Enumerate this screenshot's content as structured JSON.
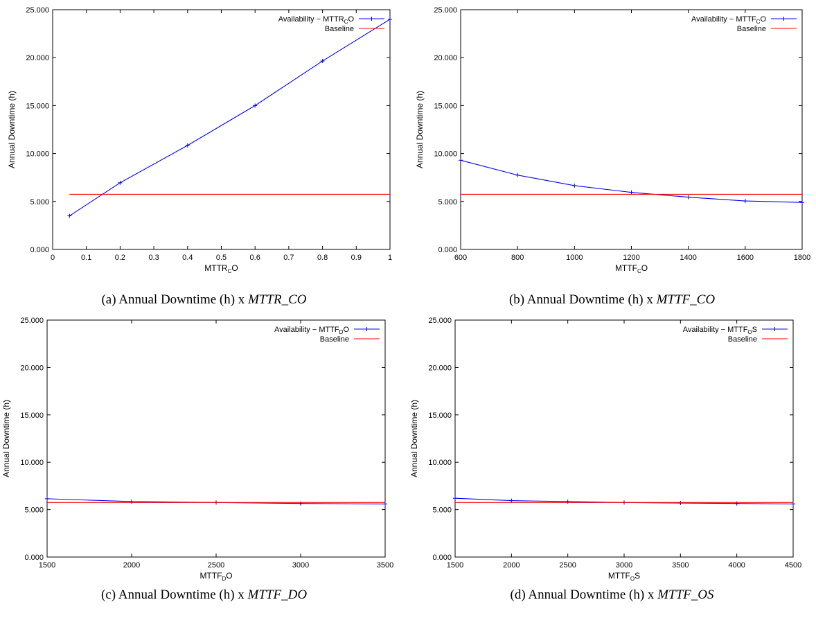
{
  "chart_data": [
    {
      "id": "a",
      "type": "line",
      "caption": {
        "prefix": "(a) Annual Downtime (h) x ",
        "var": "MTTR_CO"
      },
      "xlabel": {
        "base": "MTTR",
        "sub": "C",
        "post": "O"
      },
      "ylabel": "Annual Downtime (h)",
      "xlim": [
        0,
        1
      ],
      "ylim": [
        0,
        25
      ],
      "xticks": [
        0,
        0.1,
        0.2,
        0.3,
        0.4,
        0.5,
        0.6,
        0.7,
        0.8,
        0.9,
        1
      ],
      "xtick_labels": [
        "0",
        "0.1",
        "0.2",
        "0.3",
        "0.4",
        "0.5",
        "0.6",
        "0.7",
        "0.8",
        "0.9",
        "1"
      ],
      "yticks": [
        0,
        5,
        10,
        15,
        20,
        25
      ],
      "ytick_labels": [
        "0.000",
        "5.000",
        "10.000",
        "15.000",
        "20.000",
        "25.000"
      ],
      "legend_position": "top-right",
      "series": [
        {
          "name": {
            "base": "Availability − MTTR",
            "sub": "C",
            "post": "O"
          },
          "color": "#0000ff",
          "markers": true,
          "x": [
            0.05,
            0.2,
            0.4,
            0.6,
            0.8,
            1.0
          ],
          "y": [
            3.5,
            6.95,
            10.85,
            15.0,
            19.65,
            24.0
          ]
        },
        {
          "name": {
            "base": "Baseline",
            "sub": "",
            "post": ""
          },
          "color": "#ff0000",
          "markers": false,
          "x": [
            0.05,
            1.0
          ],
          "y": [
            5.75,
            5.75
          ]
        }
      ]
    },
    {
      "id": "b",
      "type": "line",
      "caption": {
        "prefix": "(b) Annual Downtime (h) x ",
        "var": "MTTF_CO"
      },
      "xlabel": {
        "base": "MTTF",
        "sub": "C",
        "post": "O"
      },
      "ylabel": "Annual Downtime (h)",
      "xlim": [
        600,
        1800
      ],
      "ylim": [
        0,
        25
      ],
      "xticks": [
        600,
        800,
        1000,
        1200,
        1400,
        1600,
        1800
      ],
      "xtick_labels": [
        "600",
        "800",
        "1000",
        "1200",
        "1400",
        "1600",
        "1800"
      ],
      "yticks": [
        0,
        5,
        10,
        15,
        20,
        25
      ],
      "ytick_labels": [
        "0.000",
        "5.000",
        "10.000",
        "15.000",
        "20.000",
        "25.000"
      ],
      "legend_position": "top-right",
      "series": [
        {
          "name": {
            "base": "Availability − MTTF",
            "sub": "C",
            "post": "O"
          },
          "color": "#0000ff",
          "markers": true,
          "x": [
            600,
            800,
            1000,
            1200,
            1400,
            1600,
            1800
          ],
          "y": [
            9.3,
            7.75,
            6.65,
            5.95,
            5.45,
            5.05,
            4.9
          ]
        },
        {
          "name": {
            "base": "Baseline",
            "sub": "",
            "post": ""
          },
          "color": "#ff0000",
          "markers": false,
          "x": [
            600,
            1800
          ],
          "y": [
            5.75,
            5.75
          ]
        }
      ]
    },
    {
      "id": "c",
      "type": "line",
      "caption": {
        "prefix": "(c) Annual Downtime (h) x ",
        "var": "MTTF_DO"
      },
      "xlabel": {
        "base": "MTTF",
        "sub": "D",
        "post": "O"
      },
      "ylabel": "Annual Downtime (h)",
      "xlim": [
        1500,
        3500
      ],
      "ylim": [
        0,
        25
      ],
      "xticks": [
        1500,
        2000,
        2500,
        3000,
        3500
      ],
      "xtick_labels": [
        "1500",
        "2000",
        "2500",
        "3000",
        "3500"
      ],
      "yticks": [
        0,
        5,
        10,
        15,
        20,
        25
      ],
      "ytick_labels": [
        "0.000",
        "5.000",
        "10.000",
        "15.000",
        "20.000",
        "25.000"
      ],
      "legend_position": "top-right",
      "series": [
        {
          "name": {
            "base": "Availability − MTTF",
            "sub": "D",
            "post": "O"
          },
          "color": "#0000ff",
          "markers": true,
          "x": [
            1500,
            2000,
            2500,
            3000,
            3500
          ],
          "y": [
            6.15,
            5.85,
            5.75,
            5.65,
            5.6
          ]
        },
        {
          "name": {
            "base": "Baseline",
            "sub": "",
            "post": ""
          },
          "color": "#ff0000",
          "markers": false,
          "x": [
            1500,
            3500
          ],
          "y": [
            5.75,
            5.75
          ]
        }
      ]
    },
    {
      "id": "d",
      "type": "line",
      "caption": {
        "prefix": "(d) Annual Downtime (h) x ",
        "var": "MTTF_OS"
      },
      "xlabel": {
        "base": "MTTF",
        "sub": "O",
        "post": "S"
      },
      "ylabel": "Annual Downtime (h)",
      "xlim": [
        1500,
        4500
      ],
      "ylim": [
        0,
        25
      ],
      "xticks": [
        1500,
        2000,
        2500,
        3000,
        3500,
        4000,
        4500
      ],
      "xtick_labels": [
        "1500",
        "2000",
        "2500",
        "3000",
        "3500",
        "4000",
        "4500"
      ],
      "yticks": [
        0,
        5,
        10,
        15,
        20,
        25
      ],
      "ytick_labels": [
        "0.000",
        "5.000",
        "10.000",
        "15.000",
        "20.000",
        "25.000"
      ],
      "legend_position": "top-right",
      "series": [
        {
          "name": {
            "base": "Availability − MTTF",
            "sub": "O",
            "post": "S"
          },
          "color": "#0000ff",
          "markers": true,
          "x": [
            1500,
            2000,
            2500,
            3000,
            3500,
            4000,
            4500
          ],
          "y": [
            6.2,
            5.95,
            5.85,
            5.75,
            5.7,
            5.65,
            5.6
          ]
        },
        {
          "name": {
            "base": "Baseline",
            "sub": "",
            "post": ""
          },
          "color": "#ff0000",
          "markers": false,
          "x": [
            1500,
            4500
          ],
          "y": [
            5.75,
            5.75
          ]
        }
      ]
    }
  ]
}
